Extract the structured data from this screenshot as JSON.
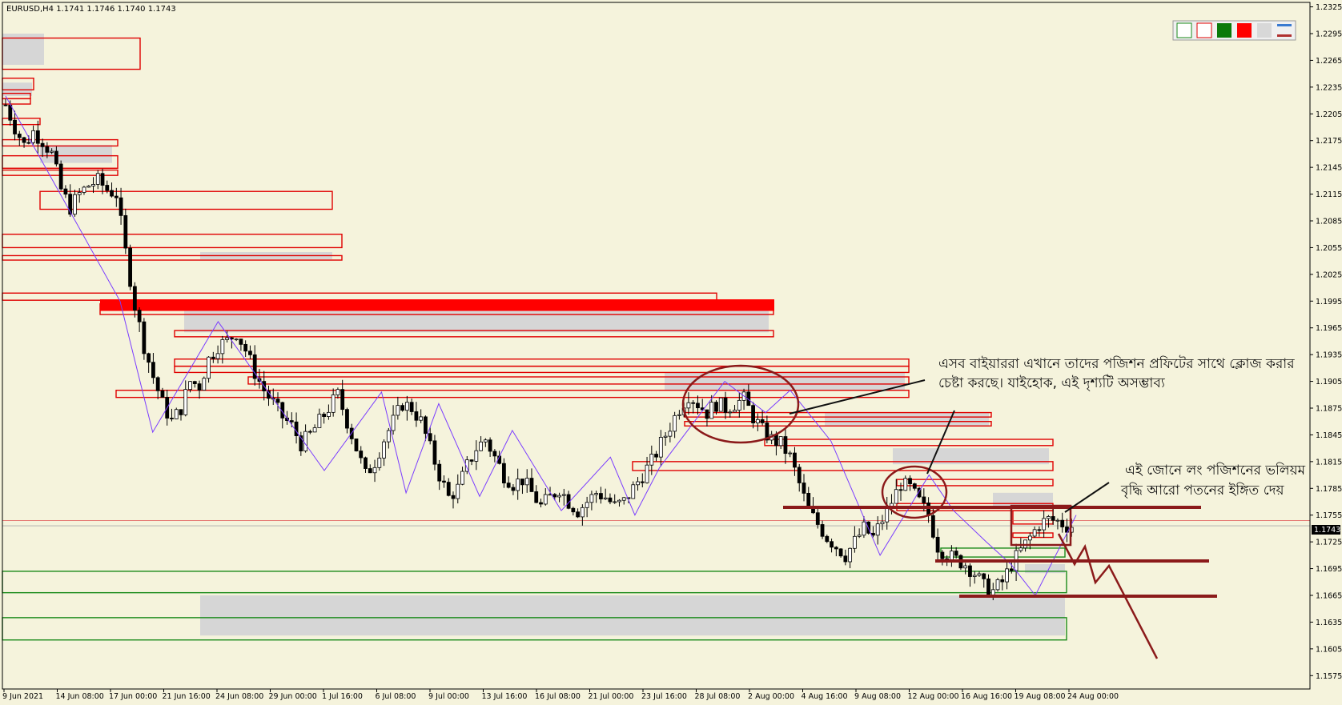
{
  "chart_data": {
    "type": "candlestick",
    "symbol_title": "EURUSD,H4  1.1741 1.1746 1.1740 1.1743",
    "current_price": "1.1743",
    "ylim": [
      1.156,
      1.233
    ],
    "y_ticks": [
      "1.2325",
      "1.2295",
      "1.2265",
      "1.2235",
      "1.2205",
      "1.2175",
      "1.2145",
      "1.2115",
      "1.2085",
      "1.2055",
      "1.2025",
      "1.1995",
      "1.1965",
      "1.1935",
      "1.1905",
      "1.1875",
      "1.1845",
      "1.1815",
      "1.1785",
      "1.1755",
      "1.1725",
      "1.1695",
      "1.1665",
      "1.1635",
      "1.1605",
      "1.1575"
    ],
    "x_ticks": [
      "9 Jun 2021",
      "14 Jun 08:00",
      "17 Jun 00:00",
      "21 Jun 16:00",
      "24 Jun 08:00",
      "29 Jun 00:00",
      "1 Jul 16:00",
      "6 Jul 08:00",
      "9 Jul 00:00",
      "13 Jul 16:00",
      "16 Jul 08:00",
      "21 Jul 00:00",
      "23 Jul 16:00",
      "28 Jul 08:00",
      "2 Aug 00:00",
      "4 Aug 16:00",
      "9 Aug 08:00",
      "12 Aug 00:00",
      "16 Aug 16:00",
      "19 Aug 08:00",
      "24 Aug 00:00"
    ],
    "price_path": [
      [
        0,
        1.2215
      ],
      [
        2,
        1.219
      ],
      [
        4,
        1.217
      ],
      [
        6,
        1.2185
      ],
      [
        8,
        1.2175
      ],
      [
        10,
        1.216
      ],
      [
        12,
        1.212
      ],
      [
        14,
        1.21
      ],
      [
        16,
        1.2115
      ],
      [
        18,
        1.2125
      ],
      [
        20,
        1.213
      ],
      [
        22,
        1.212
      ],
      [
        24,
        1.2115
      ],
      [
        26,
        1.205
      ],
      [
        28,
        1.199
      ],
      [
        30,
        1.1945
      ],
      [
        32,
        1.191
      ],
      [
        34,
        1.188
      ],
      [
        36,
        1.186
      ],
      [
        38,
        1.1875
      ],
      [
        40,
        1.1905
      ],
      [
        42,
        1.19
      ],
      [
        44,
        1.193
      ],
      [
        46,
        1.1945
      ],
      [
        48,
        1.195
      ],
      [
        50,
        1.196
      ],
      [
        52,
        1.194
      ],
      [
        54,
        1.1915
      ],
      [
        56,
        1.1895
      ],
      [
        58,
        1.188
      ],
      [
        60,
        1.1865
      ],
      [
        62,
        1.1855
      ],
      [
        64,
        1.1835
      ],
      [
        66,
        1.1845
      ],
      [
        68,
        1.186
      ],
      [
        70,
        1.1875
      ],
      [
        72,
        1.189
      ],
      [
        74,
        1.186
      ],
      [
        76,
        1.183
      ],
      [
        78,
        1.18
      ],
      [
        80,
        1.1815
      ],
      [
        82,
        1.184
      ],
      [
        84,
        1.186
      ],
      [
        86,
        1.188
      ],
      [
        88,
        1.1875
      ],
      [
        90,
        1.186
      ],
      [
        92,
        1.183
      ],
      [
        94,
        1.18
      ],
      [
        96,
        1.1775
      ],
      [
        98,
        1.1785
      ],
      [
        100,
        1.181
      ],
      [
        102,
        1.183
      ],
      [
        104,
        1.184
      ],
      [
        106,
        1.182
      ],
      [
        108,
        1.18
      ],
      [
        110,
        1.179
      ],
      [
        112,
        1.1795
      ],
      [
        114,
        1.178
      ],
      [
        116,
        1.1765
      ],
      [
        118,
        1.1775
      ],
      [
        120,
        1.1785
      ],
      [
        122,
        1.177
      ],
      [
        124,
        1.176
      ],
      [
        126,
        1.177
      ],
      [
        128,
        1.178
      ],
      [
        130,
        1.1775
      ],
      [
        132,
        1.1765
      ],
      [
        134,
        1.177
      ],
      [
        136,
        1.1785
      ],
      [
        138,
        1.18
      ],
      [
        140,
        1.1815
      ],
      [
        142,
        1.1835
      ],
      [
        144,
        1.1855
      ],
      [
        146,
        1.1875
      ],
      [
        148,
        1.189
      ],
      [
        150,
        1.188
      ],
      [
        152,
        1.187
      ],
      [
        154,
        1.188
      ],
      [
        156,
        1.1875
      ],
      [
        158,
        1.188
      ],
      [
        160,
        1.1885
      ],
      [
        162,
        1.1865
      ],
      [
        164,
        1.185
      ],
      [
        166,
        1.184
      ],
      [
        168,
        1.1835
      ],
      [
        170,
        1.182
      ],
      [
        172,
        1.179
      ],
      [
        174,
        1.176
      ],
      [
        176,
        1.1745
      ],
      [
        178,
        1.173
      ],
      [
        180,
        1.172
      ],
      [
        182,
        1.171
      ],
      [
        184,
        1.1725
      ],
      [
        186,
        1.174
      ],
      [
        188,
        1.173
      ],
      [
        190,
        1.175
      ],
      [
        192,
        1.177
      ],
      [
        194,
        1.179
      ],
      [
        196,
        1.1785
      ],
      [
        198,
        1.177
      ],
      [
        200,
        1.1755
      ],
      [
        202,
        1.172
      ],
      [
        204,
        1.171
      ],
      [
        206,
        1.1705
      ],
      [
        208,
        1.17
      ],
      [
        210,
        1.169
      ],
      [
        212,
        1.1675
      ],
      [
        214,
        1.167
      ],
      [
        216,
        1.168
      ],
      [
        218,
        1.17
      ],
      [
        220,
        1.1715
      ],
      [
        222,
        1.173
      ],
      [
        224,
        1.1745
      ],
      [
        226,
        1.175
      ],
      [
        228,
        1.1748
      ],
      [
        230,
        1.1743
      ]
    ],
    "total_bars": 232,
    "supply_zones": [
      [
        0,
        1.2265,
        1.229
      ],
      [
        0,
        1.224,
        1.2245
      ],
      [
        0,
        1.2227,
        1.223
      ],
      [
        0,
        1.222,
        1.2223
      ],
      [
        0,
        1.2195,
        1.22
      ],
      [
        0,
        1.2172,
        1.2175
      ],
      [
        0,
        1.215,
        1.2155
      ],
      [
        0,
        1.2138,
        1.2141
      ],
      [
        0,
        1.2105,
        1.2118
      ],
      [
        0,
        1.206,
        1.207
      ],
      [
        0,
        1.2042,
        1.2045
      ],
      [
        0,
        1.2,
        1.2005
      ],
      [
        0,
        1.199,
        1.1995
      ],
      [
        0,
        1.1953,
        1.1957
      ],
      [
        0,
        1.1922,
        1.1925
      ],
      [
        0,
        1.191,
        1.1913
      ],
      [
        0,
        1.19,
        1.1903
      ],
      [
        0,
        1.1885,
        1.1888
      ],
      [
        0,
        1.1865,
        1.187
      ],
      [
        0,
        1.1852,
        1.1856
      ],
      [
        0,
        1.1835,
        1.1839
      ],
      [
        0,
        1.1808,
        1.1812
      ],
      [
        0,
        1.179,
        1.1795
      ],
      [
        0,
        1.1778,
        1.1782
      ]
    ],
    "demand_zones": [
      [
        0,
        1.1668,
        1.1692
      ],
      [
        0,
        1.1612,
        1.164
      ],
      [
        0,
        1.1695,
        1.1718
      ]
    ],
    "annotation_1": "এসব বাইয়াররা এখানে তাদের পজিশন প্রফিটের সাথে ক্লোজ করার চেষ্টা করছে। যাইহোক, এই দৃশ্যটি অসম্ভাব্য",
    "annotation_2": "এই জোনে লং পজিশনের ভলিয়ম বৃদ্ধি আরো পতনের ইঙ্গিত দেয়",
    "colors": {
      "background": "#f5f3dc",
      "bull": "#000000",
      "zone_red": "#e00000",
      "zone_green": "#1a8a1a",
      "zigzag": "#7a3cff",
      "marker": "#8b1a1a",
      "price_line": "#e05050"
    }
  }
}
